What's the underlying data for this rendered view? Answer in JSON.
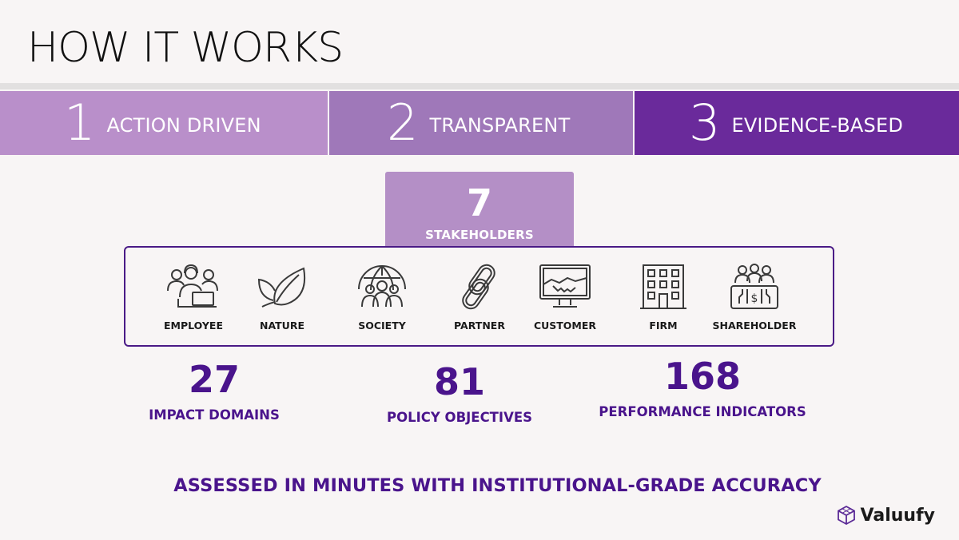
{
  "header": {
    "title": "HOW IT WORKS"
  },
  "steps": [
    {
      "num": "1",
      "label": "ACTION DRIVEN",
      "color": "#b98fca"
    },
    {
      "num": "2",
      "label": "TRANSPARENT",
      "color": "#9f78b9"
    },
    {
      "num": "3",
      "label": "EVIDENCE-BASED",
      "color": "#6a2a9b"
    }
  ],
  "stakeholders": {
    "count": "7",
    "label": "STAKEHOLDERS",
    "items": [
      {
        "name": "EMPLOYEE",
        "icon": "employee-icon"
      },
      {
        "name": "NATURE",
        "icon": "leaf-icon"
      },
      {
        "name": "SOCIETY",
        "icon": "globe-people-icon"
      },
      {
        "name": "PARTNER",
        "icon": "chain-link-icon"
      },
      {
        "name": "CUSTOMER",
        "icon": "handshake-monitor-icon"
      },
      {
        "name": "FIRM",
        "icon": "building-icon"
      },
      {
        "name": "SHAREHOLDER",
        "icon": "shareholders-icon"
      }
    ]
  },
  "stats": [
    {
      "value": "27",
      "label": "IMPACT DOMAINS"
    },
    {
      "value": "81",
      "label": "POLICY OBJECTIVES"
    },
    {
      "value": "168",
      "label": "PERFORMANCE INDICATORS"
    }
  ],
  "tagline": "ASSESSED IN MINUTES WITH INSTITUTIONAL-GRADE ACCURACY",
  "brand": {
    "name": "Valuufy",
    "icon": "cube-logo-icon"
  },
  "colors": {
    "accent": "#4a148c",
    "background": "#f8f5f5"
  }
}
